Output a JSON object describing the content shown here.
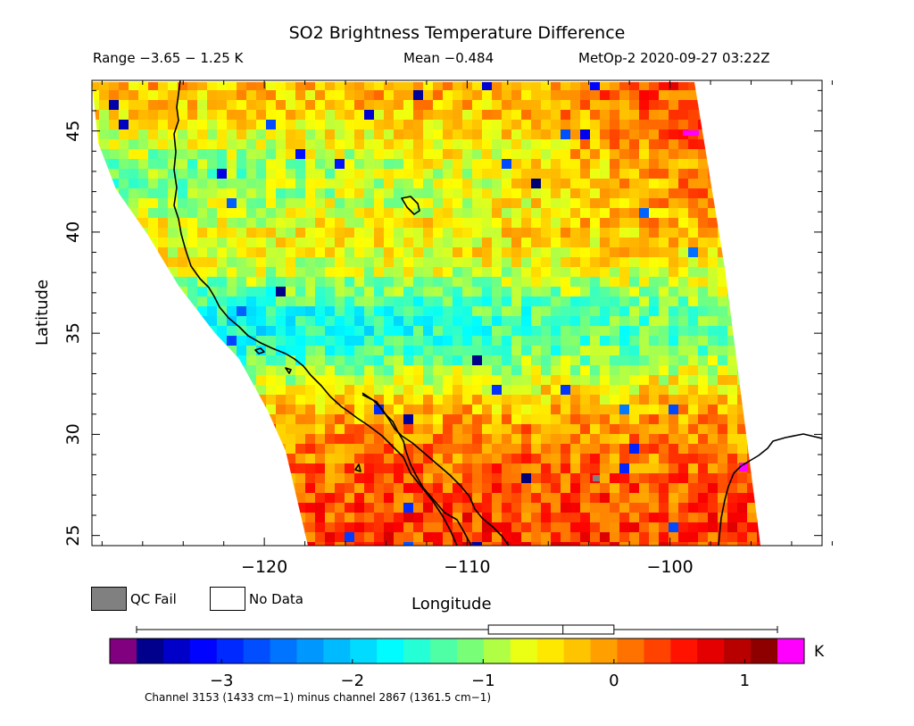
{
  "header": {
    "title": "SO2 Brightness Temperature Difference",
    "range": "Range −3.65 − 1.25 K",
    "mean": "Mean −0.484",
    "satellite": "MetOp-2 2020-09-27 03:22Z"
  },
  "map": {
    "lon_range": [
      -128.5,
      -92.5
    ],
    "lat_range": [
      24.5,
      47.5
    ],
    "x_ticks": [
      -120,
      -110,
      -100
    ],
    "x_tick_labels": [
      "−120",
      "−110",
      "−100"
    ],
    "y_ticks": [
      25,
      30,
      35,
      40,
      45
    ],
    "y_tick_labels": [
      "25",
      "30",
      "35",
      "40",
      "45"
    ],
    "xlabel": "Longitude",
    "ylabel": "Latitude",
    "coastline_color": "#000000"
  },
  "legend": {
    "qc_fail_label": "QC Fail",
    "qc_fail_color": "#808080",
    "no_data_label": "No Data",
    "no_data_color": "#ffffff"
  },
  "colorbar": {
    "range": [
      -3.65,
      1.25
    ],
    "ticks": [
      -3,
      -2,
      -1,
      0,
      1
    ],
    "tick_labels": [
      "−3",
      "−2",
      "−1",
      "0",
      "1"
    ],
    "unit": "K",
    "under_color": "#800080",
    "over_color": "#ff00ff",
    "box_stats": {
      "min": -3.65,
      "q1": -0.96,
      "median": -0.39,
      "q3": 0.0,
      "max": 1.25
    },
    "note": "Channel 3153 (1433 cm−1) minus channel 2867 (1361.5 cm−1)"
  }
}
